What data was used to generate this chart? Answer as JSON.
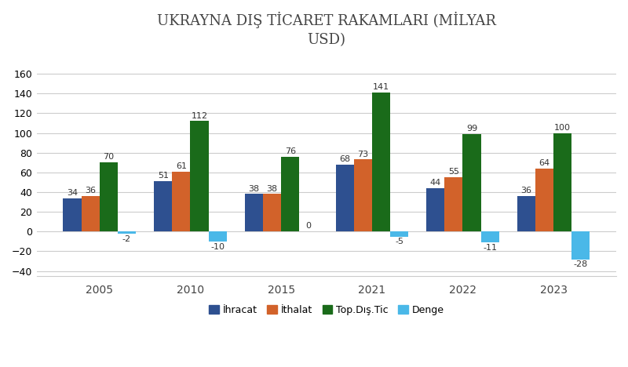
{
  "title": "UKRAYNA DIŞ TİCARET RAKAMLARI (MİLYAR\nUSD)",
  "years": [
    "2005",
    "2010",
    "2015",
    "2021",
    "2022",
    "2023"
  ],
  "ihracat": [
    34,
    51,
    38,
    68,
    44,
    36
  ],
  "ithalat": [
    36,
    61,
    38,
    73,
    55,
    64
  ],
  "top_dis_tic": [
    70,
    112,
    76,
    141,
    99,
    100
  ],
  "denge": [
    -2,
    -10,
    0,
    -5,
    -11,
    -28
  ],
  "colors": {
    "ihracat": "#2e5090",
    "ithalat": "#d2622a",
    "top_dis_tic": "#1a6b1a",
    "denge": "#4ab8e8"
  },
  "ylim": [
    -45,
    175
  ],
  "yticks": [
    -40,
    -20,
    0,
    20,
    40,
    60,
    80,
    100,
    120,
    140,
    160
  ],
  "bar_width": 0.2,
  "legend_labels": [
    "İhracat",
    "İthalat",
    "Top.Dış.Tic",
    "Denge"
  ],
  "background_color": "#ffffff",
  "grid_color": "#cccccc",
  "annotation_fontsize": 8,
  "title_fontsize": 13
}
